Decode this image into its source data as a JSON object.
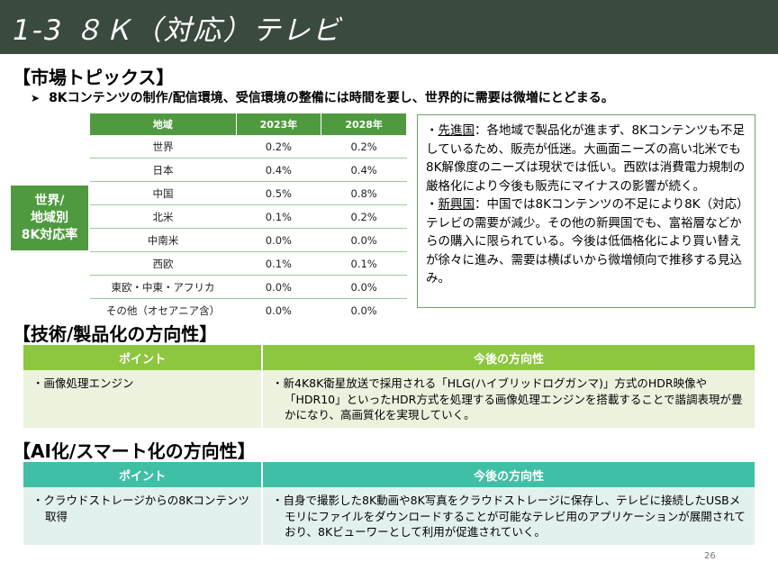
{
  "header": {
    "title": "1-3 ８Ｋ（対応）テレビ"
  },
  "market": {
    "heading": "【市場トピックス】",
    "bullet": "8Kコンテンツの制作/配信環境、受信環境の整備には時間を要し、世界的に需要は微増にとどまる。",
    "side_label": [
      "世界/",
      "地域別",
      "8K対応率"
    ],
    "table": {
      "headers": [
        "地域",
        "2023年",
        "2028年"
      ],
      "rows": [
        [
          "世界",
          "0.2%",
          "0.2%"
        ],
        [
          "日本",
          "0.4%",
          "0.4%"
        ],
        [
          "中国",
          "0.5%",
          "0.8%"
        ],
        [
          "北米",
          "0.1%",
          "0.2%"
        ],
        [
          "中南米",
          "0.0%",
          "0.0%"
        ],
        [
          "西欧",
          "0.1%",
          "0.1%"
        ],
        [
          "東欧・中東・アフリカ",
          "0.0%",
          "0.0%"
        ],
        [
          "その他（オセアニア含）",
          "0.0%",
          "0.0%"
        ]
      ]
    },
    "trend": {
      "advanced_label": "先進国",
      "advanced_text": "：各地域で製品化が進まず、8Kコンテンツも不足しているため、販売が低迷。大画面ニーズの高い北米でも8K解像度のニーズは現状では低い。西欧は消費電力規制の厳格化により今後も販売にマイナスの影響が続く。",
      "emerging_label": "新興国",
      "emerging_text": "：中国では8Kコンテンツの不足により8K（対応）テレビの需要が減少。その他の新興国でも、富裕層などからの購入に限られている。今後は低価格化により買い替えが徐々に進み、需要は横ばいから微増傾向で推移する見込み。"
    }
  },
  "tech": {
    "heading": "【技術/製品化の方向性】",
    "col_point": "ポイント",
    "col_direction": "今後の方向性",
    "point": "・画像処理エンジン",
    "direction": "・新4K8K衛星放送で採用される「HLG(ハイブリッドログガンマ)」方式のHDR映像や「HDR10」といったHDR方式を処理する画像処理エンジンを搭載することで諧調表現が豊かになり、高画質化を実現していく。"
  },
  "ai": {
    "heading": "【AI化/スマート化の方向性】",
    "col_point": "ポイント",
    "col_direction": "今後の方向性",
    "point": "・クラウドストレージからの8Kコンテンツ取得",
    "direction": "・自身で撮影した8K動画や8K写真をクラウドストレージに保存し、テレビに接続したUSBメモリにファイルをダウンロードすることが可能なテレビ用のアプリケーションが展開されており、8Kビューワーとして利用が促進されていく。"
  },
  "page_number": "26",
  "colors": {
    "header_bg": "#3b4a3f",
    "table_green": "#4f9a3e",
    "tech_header": "#8dc63f",
    "ai_header": "#3fbfa6"
  }
}
